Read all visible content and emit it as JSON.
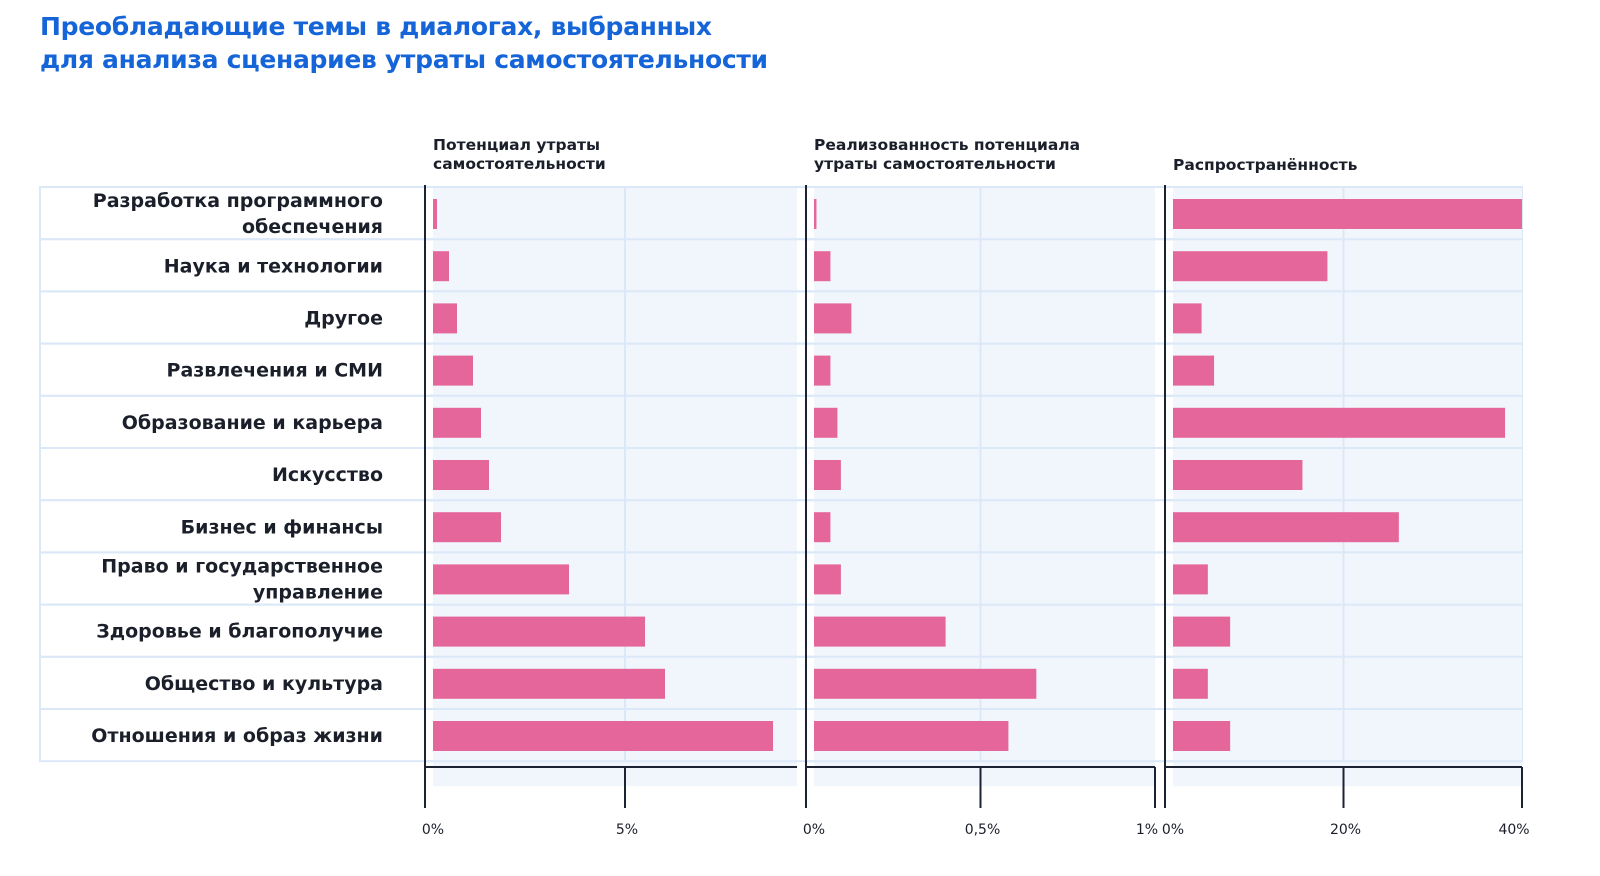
{
  "title": [
    "Преобладающие темы в диалогах, выбранных",
    "для анализа сценариев утраты самостоятельности"
  ],
  "colors": {
    "bar": "#e5669a",
    "title": "#1565d8",
    "panel_bg": "#f1f6fd",
    "grid": "#dbe8f8",
    "axis": "#1b2333"
  },
  "chart_data": {
    "type": "bar",
    "orientation": "horizontal",
    "categories": [
      "Разработка программного обеспечения",
      "Наука и технологии",
      "Другое",
      "Развлечения и СМИ",
      "Образование и карьера",
      "Искусство",
      "Бизнес и финансы",
      "Право и государственное управление",
      "Здоровье и благополучие",
      "Общество и культура",
      "Отношения и образ жизни"
    ],
    "category_lines": [
      [
        "Разработка программного",
        "обеспечения"
      ],
      [
        "Наука и технологии"
      ],
      [
        "Другое"
      ],
      [
        "Развлечения и СМИ"
      ],
      [
        "Образование и карьера"
      ],
      [
        "Искусство"
      ],
      [
        "Бизнес и финансы"
      ],
      [
        "Право и государственное",
        "управление"
      ],
      [
        "Здоровье и благополучие"
      ],
      [
        "Общество и культура"
      ],
      [
        "Отношения и образ жизни"
      ]
    ],
    "grid": true,
    "panels": [
      {
        "title": [
          "Потенциал утраты",
          "самостоятельности"
        ],
        "xlim": [
          0,
          9.3
        ],
        "ticks": [
          0,
          5
        ],
        "tick_labels": [
          "0%",
          "5%"
        ],
        "unit": "%",
        "values": [
          0.3,
          0.6,
          0.8,
          1.2,
          1.4,
          1.6,
          1.9,
          3.6,
          5.5,
          6.0,
          8.7
        ]
      },
      {
        "title": [
          "Реализованность потенциала",
          "утраты самостоятельности"
        ],
        "xlim": [
          0,
          1
        ],
        "ticks": [
          0,
          0.5,
          1
        ],
        "tick_labels": [
          "0%",
          "0,5%",
          "1%"
        ],
        "unit": "%",
        "values": [
          0.03,
          0.07,
          0.13,
          0.07,
          0.09,
          0.1,
          0.07,
          0.1,
          0.4,
          0.66,
          0.58
        ]
      },
      {
        "title": [
          "Распространённость"
        ],
        "xlim": [
          0,
          40
        ],
        "ticks": [
          0,
          20,
          40
        ],
        "tick_labels": [
          "0%",
          "20%",
          "40%"
        ],
        "unit": "%",
        "values": [
          40,
          18.2,
          4.1,
          5.5,
          38.1,
          15.4,
          26.2,
          4.8,
          7.3,
          4.8,
          7.3
        ]
      }
    ]
  }
}
